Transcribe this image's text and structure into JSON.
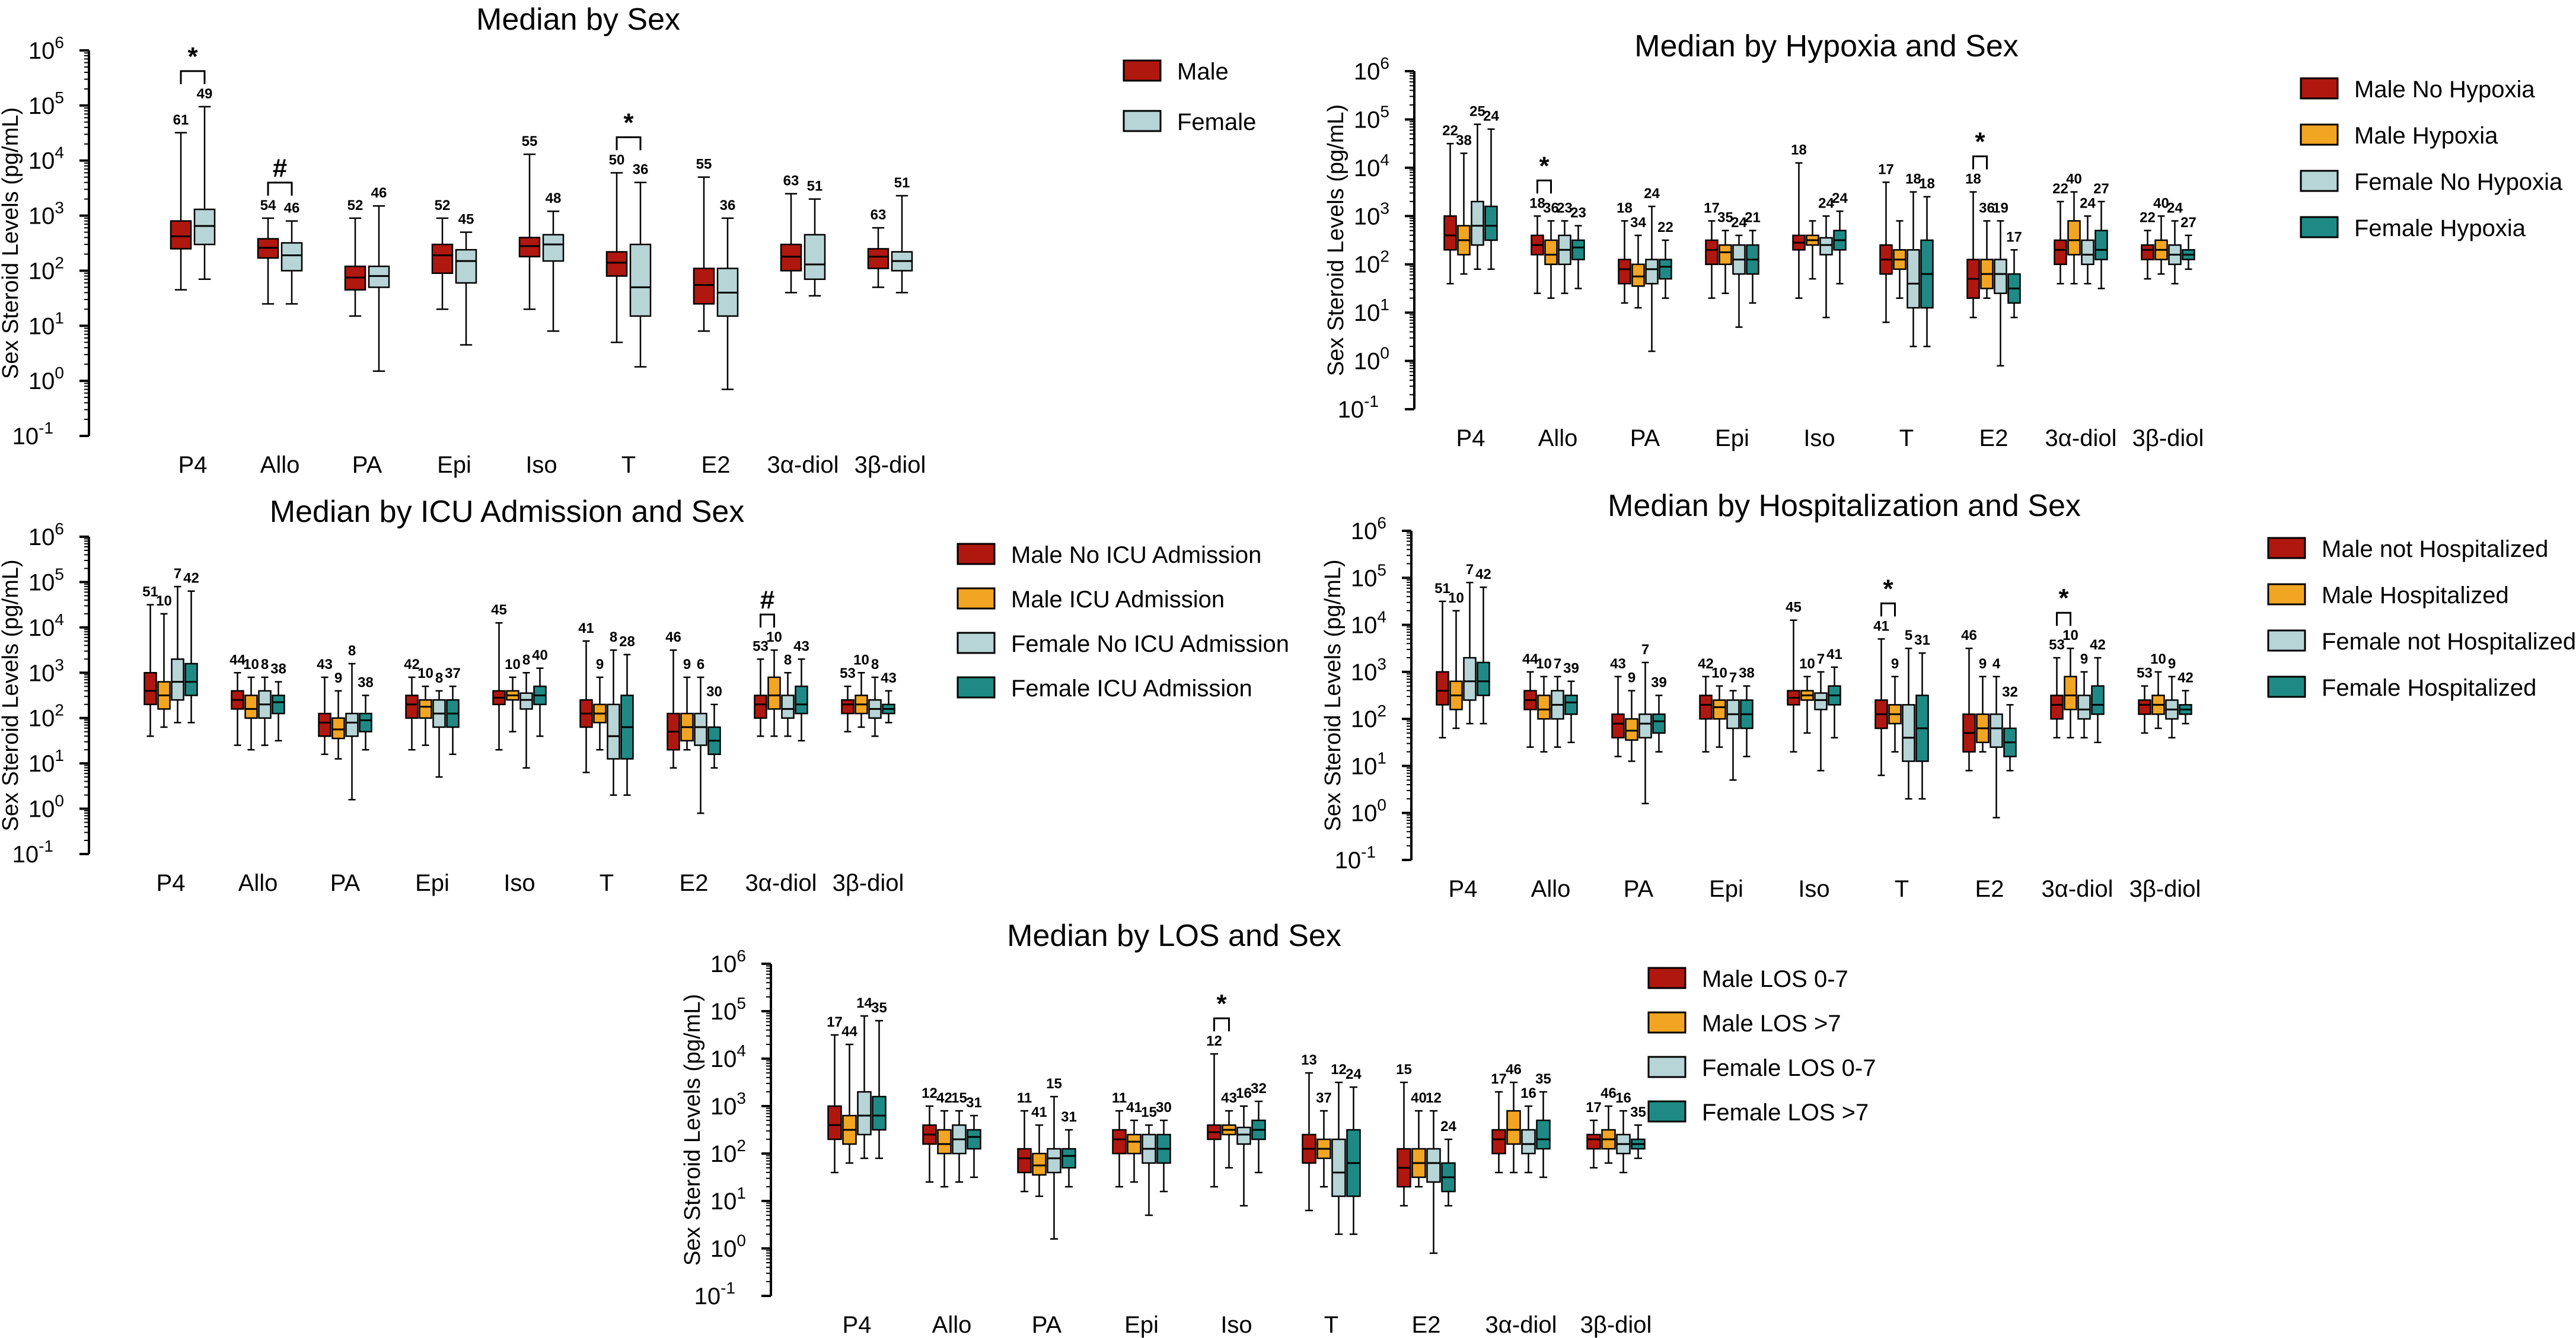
{
  "figure": {
    "description_labels": true
  },
  "legend_colors": {
    "male_a": "#b0170f",
    "male_b": "#f2a523",
    "female_a": "#b7d4d6",
    "female_b": "#1f8a85"
  },
  "chart_data": [
    {
      "id": "A",
      "type": "box",
      "title": "Median by Sex",
      "ylabel": "Sex Steroid Levels (pg/mL)",
      "yscale": "log",
      "ylim_exp": [
        -1,
        6
      ],
      "categories": [
        "P4",
        "Allo",
        "PA",
        "Epi",
        "Iso",
        "T",
        "E2",
        "3α-diol",
        "3β-diol"
      ],
      "series": [
        {
          "name": "Male",
          "color": "#b0170f",
          "boxes": [
            {
              "min": 45,
              "q1": 250,
              "med": 420,
              "q3": 800,
              "max": 32000,
              "n": "61"
            },
            {
              "min": 25,
              "q1": 170,
              "med": 260,
              "q3": 380,
              "max": 900,
              "n": "54"
            },
            {
              "min": 15,
              "q1": 45,
              "med": 75,
              "q3": 120,
              "max": 900,
              "n": "52"
            },
            {
              "min": 20,
              "q1": 90,
              "med": 190,
              "q3": 300,
              "max": 900,
              "n": "52"
            },
            {
              "min": 20,
              "q1": 180,
              "med": 280,
              "q3": 400,
              "max": 13000,
              "n": "55"
            },
            {
              "min": 5,
              "q1": 80,
              "med": 140,
              "q3": 220,
              "max": 6000,
              "n": "50"
            },
            {
              "min": 8,
              "q1": 25,
              "med": 55,
              "q3": 110,
              "max": 5000,
              "n": "55"
            },
            {
              "min": 40,
              "q1": 100,
              "med": 180,
              "q3": 300,
              "max": 2500,
              "n": "63"
            },
            {
              "min": 50,
              "q1": 110,
              "med": 180,
              "q3": 250,
              "max": 600,
              "n": "63"
            }
          ]
        },
        {
          "name": "Female",
          "color": "#b7d4d6",
          "boxes": [
            {
              "min": 70,
              "q1": 300,
              "med": 650,
              "q3": 1300,
              "max": 95000,
              "n": "49"
            },
            {
              "min": 25,
              "q1": 100,
              "med": 190,
              "q3": 320,
              "max": 800,
              "n": "46"
            },
            {
              "min": 1.5,
              "q1": 50,
              "med": 80,
              "q3": 120,
              "max": 1500,
              "n": "46"
            },
            {
              "min": 4.5,
              "q1": 60,
              "med": 150,
              "q3": 240,
              "max": 500,
              "n": "45"
            },
            {
              "min": 8,
              "q1": 150,
              "med": 300,
              "q3": 450,
              "max": 1200,
              "n": "48"
            },
            {
              "min": 1.8,
              "q1": 15,
              "med": 50,
              "q3": 300,
              "max": 4000,
              "n": "36"
            },
            {
              "min": 0.7,
              "q1": 15,
              "med": 40,
              "q3": 110,
              "max": 900,
              "n": "36"
            },
            {
              "min": 35,
              "q1": 70,
              "med": 130,
              "q3": 450,
              "max": 2000,
              "n": "51"
            },
            {
              "min": 40,
              "q1": 100,
              "med": 150,
              "q3": 220,
              "max": 2300,
              "n": "51"
            }
          ]
        }
      ],
      "annotations": [
        {
          "category": 0,
          "symbol": "*"
        },
        {
          "category": 1,
          "symbol": "#"
        },
        {
          "category": 5,
          "symbol": "*"
        }
      ],
      "legend": [
        "Male",
        "Female"
      ]
    },
    {
      "id": "B",
      "type": "box",
      "title": "Median by Hypoxia and Sex",
      "ylabel": "Sex Steroid Levels (pg/mL)",
      "yscale": "log",
      "ylim_exp": [
        -1,
        6
      ],
      "categories": [
        "P4",
        "Allo",
        "PA",
        "Epi",
        "Iso",
        "T",
        "E2",
        "3α-diol",
        "3β-diol"
      ],
      "series": [
        {
          "name": "Male No Hypoxia",
          "color": "#b0170f",
          "n": [
            "22",
            "18",
            "18",
            "17",
            "18",
            "17",
            "18",
            "22",
            "22"
          ]
        },
        {
          "name": "Male Hypoxia",
          "color": "#f2a523",
          "n": [
            "38",
            "36",
            "34",
            "35",
            "",
            "",
            "36",
            "40",
            "40"
          ]
        },
        {
          "name": "Female No Hypoxia",
          "color": "#b7d4d6",
          "n": [
            "25",
            "23",
            "24",
            "24",
            "24",
            "18",
            "19",
            "24",
            "24"
          ]
        },
        {
          "name": "Female Hypoxia",
          "color": "#1f8a85",
          "n": [
            "24",
            "23",
            "22",
            "21",
            "24",
            "18",
            "17",
            "27",
            "27"
          ]
        }
      ],
      "annotations": [
        {
          "category": 1,
          "symbol": "*"
        },
        {
          "category": 6,
          "symbol": "*"
        }
      ],
      "legend": [
        "Male No Hypoxia",
        "Male Hypoxia",
        "Female No Hypoxia",
        "Female Hypoxia"
      ]
    },
    {
      "id": "C",
      "type": "box",
      "title": "Median by ICU Admission and Sex",
      "ylabel": "Sex Steroid Levels (pg/mL)",
      "yscale": "log",
      "ylim_exp": [
        -1,
        6
      ],
      "categories": [
        "P4",
        "Allo",
        "PA",
        "Epi",
        "Iso",
        "T",
        "E2",
        "3α-diol",
        "3β-diol"
      ],
      "series": [
        {
          "name": "Male No ICU Admission",
          "color": "#b0170f",
          "n": [
            "51",
            "44",
            "43",
            "42",
            "45",
            "41",
            "46",
            "53",
            "53"
          ]
        },
        {
          "name": "Male ICU Admission",
          "color": "#f2a523",
          "n": [
            "10",
            "10",
            "9",
            "10",
            "10",
            "9",
            "9",
            "10",
            "10"
          ]
        },
        {
          "name": "Female No ICU Admission",
          "color": "#b7d4d6",
          "n": [
            "7",
            "8",
            "8",
            "8",
            "8",
            "8",
            "6",
            "8",
            "8"
          ]
        },
        {
          "name": "Female ICU Admission",
          "color": "#1f8a85",
          "n": [
            "42",
            "38",
            "38",
            "37",
            "40",
            "28",
            "30",
            "43",
            "43"
          ]
        }
      ],
      "annotations": [
        {
          "category": 7,
          "symbol": "#"
        }
      ],
      "legend": [
        "Male No ICU Admission",
        "Male ICU Admission",
        "Female No ICU Admission",
        "Female ICU Admission"
      ]
    },
    {
      "id": "D",
      "type": "box",
      "title": "Median by Hospitalization and Sex",
      "ylabel": "Sex Steroid Levels (pg/mL)",
      "yscale": "log",
      "ylim_exp": [
        -1,
        6
      ],
      "categories": [
        "P4",
        "Allo",
        "PA",
        "Epi",
        "Iso",
        "T",
        "E2",
        "3α-diol",
        "3β-diol"
      ],
      "series": [
        {
          "name": "Male not Hospitalized",
          "color": "#b0170f",
          "n": [
            "51",
            "44",
            "43",
            "42",
            "45",
            "41",
            "46",
            "53",
            "53"
          ]
        },
        {
          "name": "Male Hospitalized",
          "color": "#f2a523",
          "n": [
            "10",
            "10",
            "9",
            "10",
            "10",
            "9",
            "9",
            "10",
            "10"
          ]
        },
        {
          "name": "Female not Hospitalized",
          "color": "#b7d4d6",
          "n": [
            "7",
            "7",
            "7",
            "7",
            "7",
            "5",
            "4",
            "9",
            "9"
          ]
        },
        {
          "name": "Female Hospitalized",
          "color": "#1f8a85",
          "n": [
            "42",
            "39",
            "39",
            "38",
            "41",
            "31",
            "32",
            "42",
            "42"
          ]
        }
      ],
      "annotations": [
        {
          "category": 5,
          "symbol": "*"
        },
        {
          "category": 7,
          "symbol": "*"
        }
      ],
      "legend": [
        "Male not Hospitalized",
        "Male Hospitalized",
        "Female not Hospitalized",
        "Female Hospitalized"
      ]
    },
    {
      "id": "E",
      "type": "box",
      "title": "Median by LOS and Sex",
      "ylabel": "Sex Steroid Levels (pg/mL)",
      "yscale": "log",
      "ylim_exp": [
        -1,
        6
      ],
      "categories": [
        "P4",
        "Allo",
        "PA",
        "Epi",
        "Iso",
        "T",
        "E2",
        "3α-diol",
        "3β-diol"
      ],
      "series": [
        {
          "name": "Male LOS 0-7",
          "color": "#b0170f",
          "n": [
            "17",
            "12",
            "11",
            "11",
            "12",
            "13",
            "15",
            "17",
            "17"
          ]
        },
        {
          "name": "Male LOS >7",
          "color": "#f2a523",
          "n": [
            "44",
            "42",
            "41",
            "41",
            "43",
            "37",
            "40",
            "46",
            "46"
          ]
        },
        {
          "name": "Female LOS 0-7",
          "color": "#b7d4d6",
          "n": [
            "14",
            "15",
            "15",
            "15",
            "16",
            "12",
            "12",
            "16",
            "16"
          ]
        },
        {
          "name": "Female LOS >7",
          "color": "#1f8a85",
          "n": [
            "35",
            "31",
            "31",
            "30",
            "32",
            "24",
            "24",
            "35",
            "35"
          ]
        }
      ],
      "annotations": [
        {
          "category": 4,
          "symbol": "*"
        }
      ],
      "legend": [
        "Male LOS 0-7",
        "Male LOS >7",
        "Female LOS 0-7",
        "Female LOS >7"
      ]
    }
  ]
}
